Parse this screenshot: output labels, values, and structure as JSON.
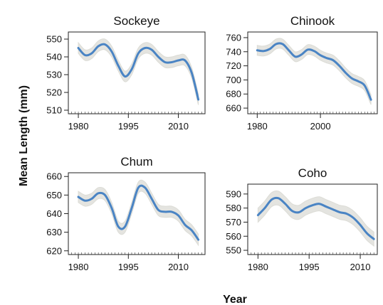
{
  "figure": {
    "ylabel": "Mean Length (mm)",
    "xlabel": "Year"
  },
  "chart_data": [
    {
      "type": "line",
      "title": "Sockeye",
      "xlim": [
        1977,
        2018
      ],
      "ylim": [
        508,
        554
      ],
      "xticks": [
        1980,
        1995,
        2010
      ],
      "yticks": [
        510,
        520,
        530,
        540,
        550
      ],
      "series": [
        {
          "x": [
            1980,
            1982,
            1984,
            1986,
            1988,
            1990,
            1992,
            1994,
            1996,
            1998,
            2000,
            2002,
            2004,
            2006,
            2008,
            2010,
            2012,
            2014,
            2016
          ],
          "y": [
            545,
            541,
            542,
            546,
            547,
            543,
            535,
            529,
            533,
            542,
            545,
            544,
            540,
            537,
            537,
            538,
            538,
            531,
            516
          ]
        }
      ],
      "band_width": 3,
      "color": "#4a84c4"
    },
    {
      "type": "line",
      "title": "Chinook",
      "xlim": [
        1977,
        2018
      ],
      "ylim": [
        652,
        768
      ],
      "xticks": [
        1980,
        2000
      ],
      "yticks": [
        660,
        680,
        700,
        720,
        740,
        760
      ],
      "series": [
        {
          "x": [
            1980,
            1982,
            1984,
            1986,
            1988,
            1990,
            1992,
            1994,
            1996,
            1998,
            2000,
            2002,
            2004,
            2006,
            2008,
            2010,
            2012,
            2014,
            2016
          ],
          "y": [
            742,
            741,
            744,
            751,
            751,
            742,
            733,
            736,
            743,
            741,
            735,
            731,
            728,
            720,
            710,
            702,
            698,
            692,
            672
          ]
        }
      ],
      "band_width": 7,
      "color": "#4a84c4"
    },
    {
      "type": "line",
      "title": "Chum",
      "xlim": [
        1977,
        2018
      ],
      "ylim": [
        618,
        662
      ],
      "xticks": [
        1980,
        1995,
        2010
      ],
      "yticks": [
        620,
        630,
        640,
        650,
        660
      ],
      "series": [
        {
          "x": [
            1980,
            1982,
            1984,
            1986,
            1988,
            1990,
            1992,
            1994,
            1996,
            1998,
            2000,
            2002,
            2004,
            2006,
            2008,
            2010,
            2012,
            2014,
            2016
          ],
          "y": [
            649,
            647,
            648,
            651,
            650,
            643,
            633,
            633,
            643,
            654,
            654,
            648,
            642,
            641,
            641,
            639,
            634,
            631,
            626
          ]
        }
      ],
      "band_width": 3,
      "color": "#4a84c4"
    },
    {
      "type": "line",
      "title": "Coho",
      "xlim": [
        1977,
        2015
      ],
      "ylim": [
        547,
        597
      ],
      "xticks": [
        1980,
        1995,
        2010
      ],
      "yticks": [
        550,
        560,
        570,
        580,
        590
      ],
      "series": [
        {
          "x": [
            1980,
            1982,
            1984,
            1986,
            1988,
            1990,
            1992,
            1994,
            1996,
            1998,
            2000,
            2002,
            2004,
            2006,
            2008,
            2010,
            2012,
            2014
          ],
          "y": [
            575,
            580,
            586,
            587,
            583,
            578,
            577,
            580,
            582,
            583,
            581,
            579,
            577,
            576,
            573,
            568,
            562,
            558
          ]
        }
      ],
      "band_width": 5,
      "color": "#4a84c4"
    }
  ]
}
